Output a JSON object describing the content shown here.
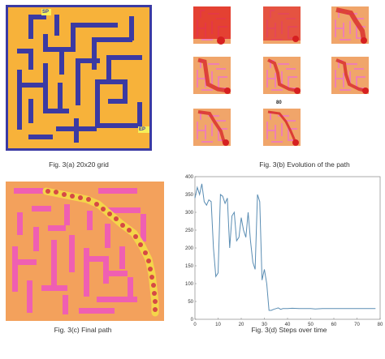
{
  "figure": {
    "panel_a": {
      "caption": "Fig. 3(a) 20x20 grid",
      "start_label": "SP",
      "end_label": "EP",
      "colors": {
        "background": "#f7b23a",
        "walls": "#3b3aa3",
        "marker": "#f5f05a"
      }
    },
    "panel_b": {
      "caption": "Fig. 3(b) Evolution of the path",
      "generation_label": "80",
      "thumbnail_count": 8
    },
    "panel_c": {
      "caption": "Fig. 3(c) Final path",
      "colors": {
        "background": "#f3a15c",
        "walls": "#ef5fb2",
        "path": "#f4d54a",
        "dots": "#d64a45"
      }
    },
    "panel_d": {
      "caption": "Fig. 3(d) Steps over time"
    }
  },
  "chart_data": {
    "type": "line",
    "title": "",
    "xlabel": "",
    "ylabel": "",
    "xlim": [
      0,
      80
    ],
    "ylim": [
      0,
      400
    ],
    "xticks": [
      "0",
      "10",
      "20",
      "30",
      "40",
      "50",
      "60",
      "70",
      "80"
    ],
    "yticks": [
      "0",
      "50",
      "100",
      "150",
      "200",
      "250",
      "300",
      "350",
      "400"
    ],
    "grid": false,
    "line_color": "#5a8db3",
    "series": [
      {
        "values_x": [
          0,
          1,
          2,
          3,
          4,
          5,
          6,
          7,
          8,
          9,
          10,
          11,
          12,
          13,
          14,
          15,
          16,
          17,
          18,
          19,
          20,
          21,
          22,
          23,
          24,
          25,
          26,
          27,
          28,
          29,
          30,
          31,
          32,
          33,
          34,
          35,
          36,
          37,
          38,
          39,
          40,
          42,
          45,
          48,
          50,
          52,
          55,
          58,
          60,
          62,
          65,
          68,
          70,
          72,
          75,
          78
        ],
        "values_y": [
          340,
          370,
          350,
          380,
          330,
          320,
          335,
          330,
          200,
          120,
          130,
          350,
          345,
          325,
          340,
          200,
          290,
          300,
          220,
          230,
          285,
          250,
          230,
          300,
          220,
          160,
          140,
          350,
          330,
          110,
          140,
          100,
          25,
          25,
          28,
          30,
          32,
          28,
          30,
          30,
          30,
          31,
          30,
          30,
          30,
          29,
          30,
          30,
          30,
          30,
          30,
          30,
          30,
          30,
          30,
          30
        ]
      }
    ]
  }
}
